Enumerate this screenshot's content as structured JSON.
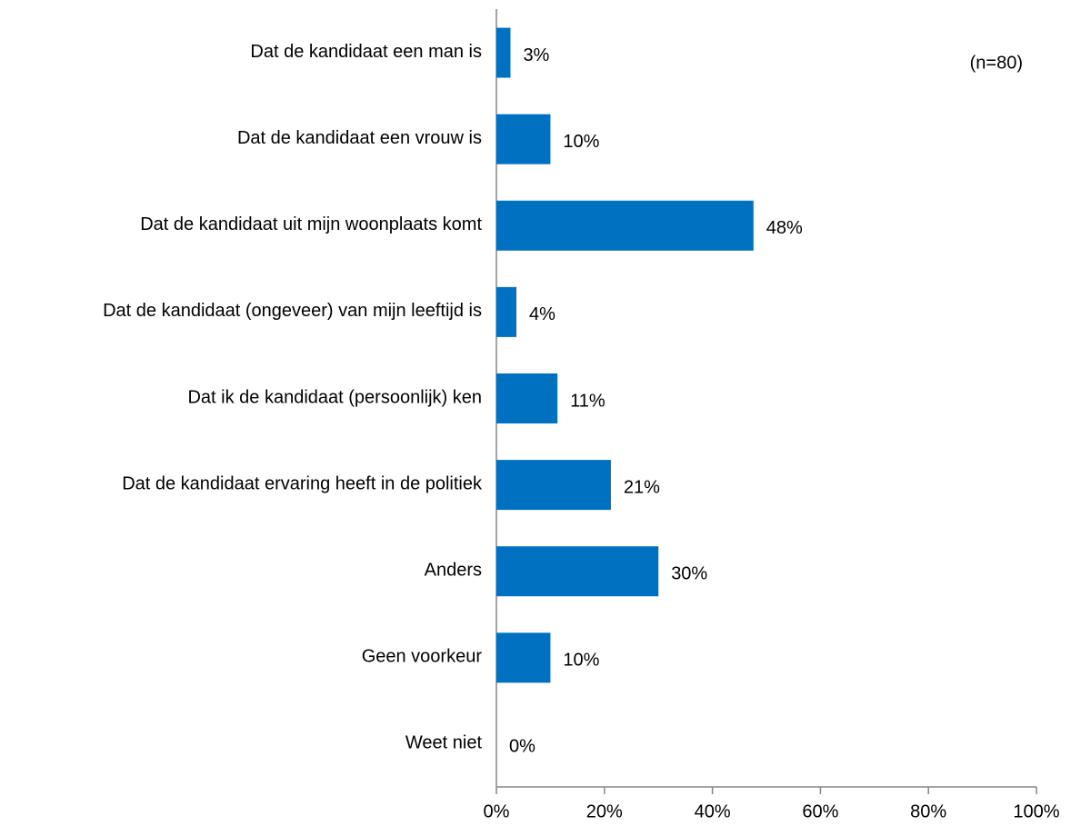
{
  "chart_data": {
    "type": "bar",
    "orientation": "horizontal",
    "annotation": "(n=80)",
    "categories": [
      "Dat de kandidaat een man is",
      "Dat de kandidaat een vrouw is",
      "Dat de kandidaat uit mijn woonplaats komt",
      "Dat de kandidaat (ongeveer) van mijn leeftijd is",
      "Dat ik de kandidaat (persoonlijk) ken",
      "Dat de kandidaat ervaring heeft in de politiek",
      "Anders",
      "Geen voorkeur",
      "Weet niet"
    ],
    "values": [
      2.6,
      10,
      47.6,
      3.7,
      11.3,
      21.2,
      30,
      10,
      0
    ],
    "value_labels": [
      "3%",
      "10%",
      "48%",
      "4%",
      "11%",
      "21%",
      "30%",
      "10%",
      "0%"
    ],
    "color": "#0070c0",
    "xlim": [
      0,
      100
    ],
    "xticks": [
      {
        "value": 0,
        "label": "0%"
      },
      {
        "value": 20,
        "label": "20%"
      },
      {
        "value": 40,
        "label": "40%"
      },
      {
        "value": 60,
        "label": "60%"
      },
      {
        "value": 80,
        "label": "80%"
      },
      {
        "value": 100,
        "label": "100%"
      }
    ],
    "grid": false
  }
}
